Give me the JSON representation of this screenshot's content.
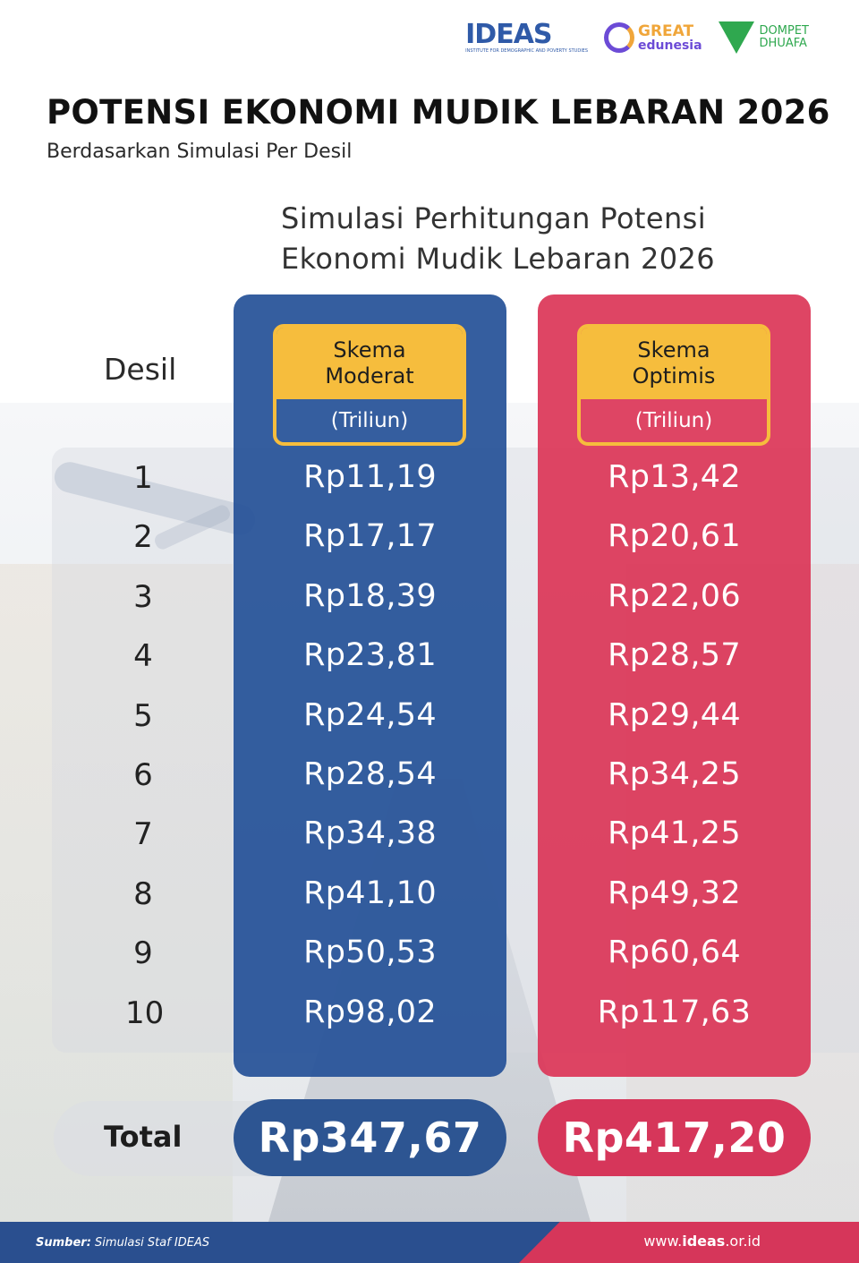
{
  "logos": {
    "ideas": "IDEAS",
    "ideas_sub": "INSTITUTE FOR DEMOGRAPHIC AND POVERTY STUDIES",
    "great_line1": "GREAT",
    "great_line2": "edunesia",
    "dompet_line1": "DOMPET",
    "dompet_line2": "DHUAFA"
  },
  "header": {
    "title": "POTENSI EKONOMI MUDIK LEBARAN 2026",
    "subtitle": "Berdasarkan Simulasi Per Desil"
  },
  "chart_data": {
    "type": "table",
    "title": "Simulasi Perhitungan Potensi\nEkonomi Mudik Lebaran 2026",
    "row_header": "Desil",
    "categories": [
      "1",
      "2",
      "3",
      "4",
      "5",
      "6",
      "7",
      "8",
      "9",
      "10"
    ],
    "series": [
      {
        "name": "Skema\nModerat",
        "unit": "(Triliun)",
        "color": "#265298",
        "labels": [
          "Rp11,19",
          "Rp17,17",
          "Rp18,39",
          "Rp23,81",
          "Rp24,54",
          "Rp28,54",
          "Rp34,38",
          "Rp41,10",
          "Rp50,53",
          "Rp98,02"
        ],
        "values": [
          11.19,
          17.17,
          18.39,
          23.81,
          24.54,
          28.54,
          34.38,
          41.1,
          50.53,
          98.02
        ],
        "total_label": "Rp347,67",
        "total": 347.67
      },
      {
        "name": "Skema\nOptimis",
        "unit": "(Triliun)",
        "color": "#dc3758",
        "labels": [
          "Rp13,42",
          "Rp20,61",
          "Rp22,06",
          "Rp28,57",
          "Rp29,44",
          "Rp34,25",
          "Rp41,25",
          "Rp49,32",
          "Rp60,64",
          "Rp117,63"
        ],
        "values": [
          13.42,
          20.61,
          22.06,
          28.57,
          29.44,
          34.25,
          41.25,
          49.32,
          60.64,
          117.63
        ],
        "total_label": "Rp417,20",
        "total": 417.2
      }
    ],
    "total_label": "Total"
  },
  "footer": {
    "source_label": "Sumber:",
    "source_text": " Simulasi Staf IDEAS",
    "url_prefix": "www.",
    "url_bold": "ideas",
    "url_suffix": ".or.id"
  }
}
